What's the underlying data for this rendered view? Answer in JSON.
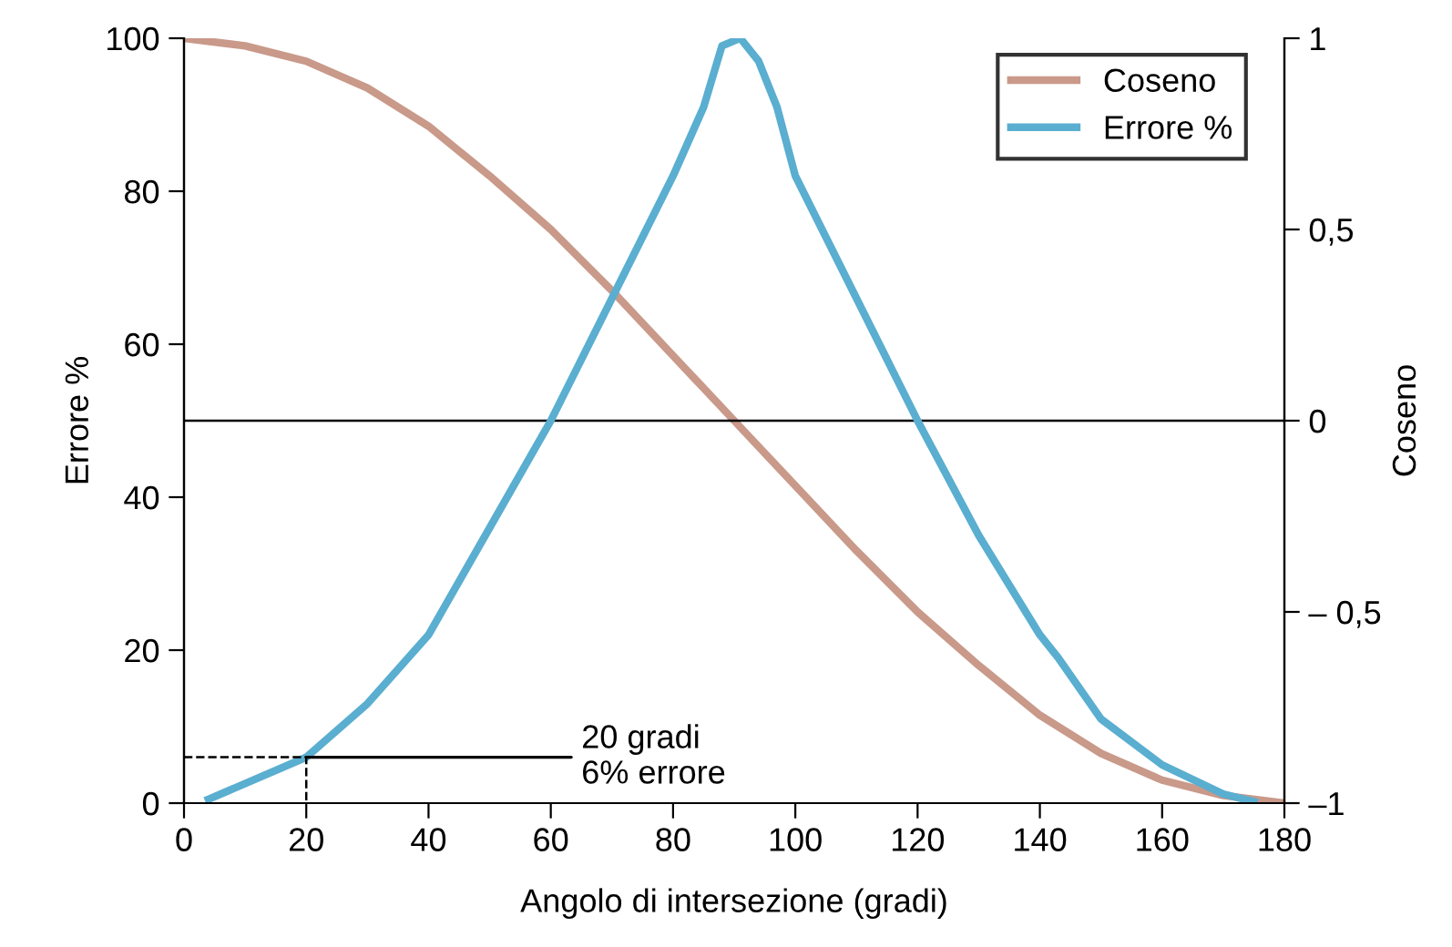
{
  "chart_data": {
    "type": "line",
    "xlabel": "Angolo di intersezione (gradi)",
    "ylabel": "Errore %",
    "y2label": "Coseno",
    "xlim": [
      0,
      180
    ],
    "xticks": [
      0,
      20,
      40,
      60,
      80,
      100,
      120,
      140,
      160,
      180
    ],
    "ylim": [
      0,
      100
    ],
    "yticks": [
      0,
      20,
      40,
      60,
      80,
      100
    ],
    "y2lim": [
      -1,
      1
    ],
    "y2ticks": [
      {
        "value": 1,
        "label": "1"
      },
      {
        "value": 0.5,
        "label": "0,5"
      },
      {
        "value": 0,
        "label": "0"
      },
      {
        "value": -0.5,
        "label": "– 0,5"
      },
      {
        "value": -1,
        "label": "–1"
      }
    ],
    "series": [
      {
        "name": "Coseno",
        "color": "#c9998a",
        "axis": "y2",
        "x": [
          0,
          10,
          20,
          30,
          40,
          50,
          60,
          70,
          80,
          90,
          100,
          110,
          120,
          130,
          140,
          150,
          160,
          170,
          180
        ],
        "values": [
          1,
          0.98,
          0.94,
          0.87,
          0.77,
          0.64,
          0.5,
          0.34,
          0.17,
          0,
          -0.17,
          -0.34,
          -0.5,
          -0.64,
          -0.77,
          -0.87,
          -0.94,
          -0.98,
          -1
        ]
      },
      {
        "name": "Errore %",
        "color": "#5aaed0",
        "x": [
          4,
          20,
          30,
          40,
          50,
          60,
          70,
          80,
          85,
          88,
          91,
          94,
          97,
          100,
          110,
          120,
          130,
          140,
          143,
          150,
          160,
          170,
          175
        ],
        "values": [
          0.5,
          6,
          13,
          22,
          36,
          50,
          66,
          82,
          91,
          99,
          100,
          97,
          91,
          82,
          66,
          50,
          35,
          22,
          19,
          11,
          5,
          1.2,
          0.2
        ]
      },
      {
        "color": "#000000",
        "line_style": "dashed",
        "x": [
          0,
          20,
          20
        ],
        "values": [
          6,
          6,
          0
        ]
      }
    ],
    "ref_lines": [
      {
        "axis": "y2",
        "value": 0,
        "color": "#000000"
      }
    ],
    "annotations": [
      {
        "text": "20 gradi\n6% errore",
        "x": 20,
        "y": 6
      }
    ],
    "legend": "top right",
    "grid": false,
    "line_style": "solid",
    "marker": "none"
  }
}
